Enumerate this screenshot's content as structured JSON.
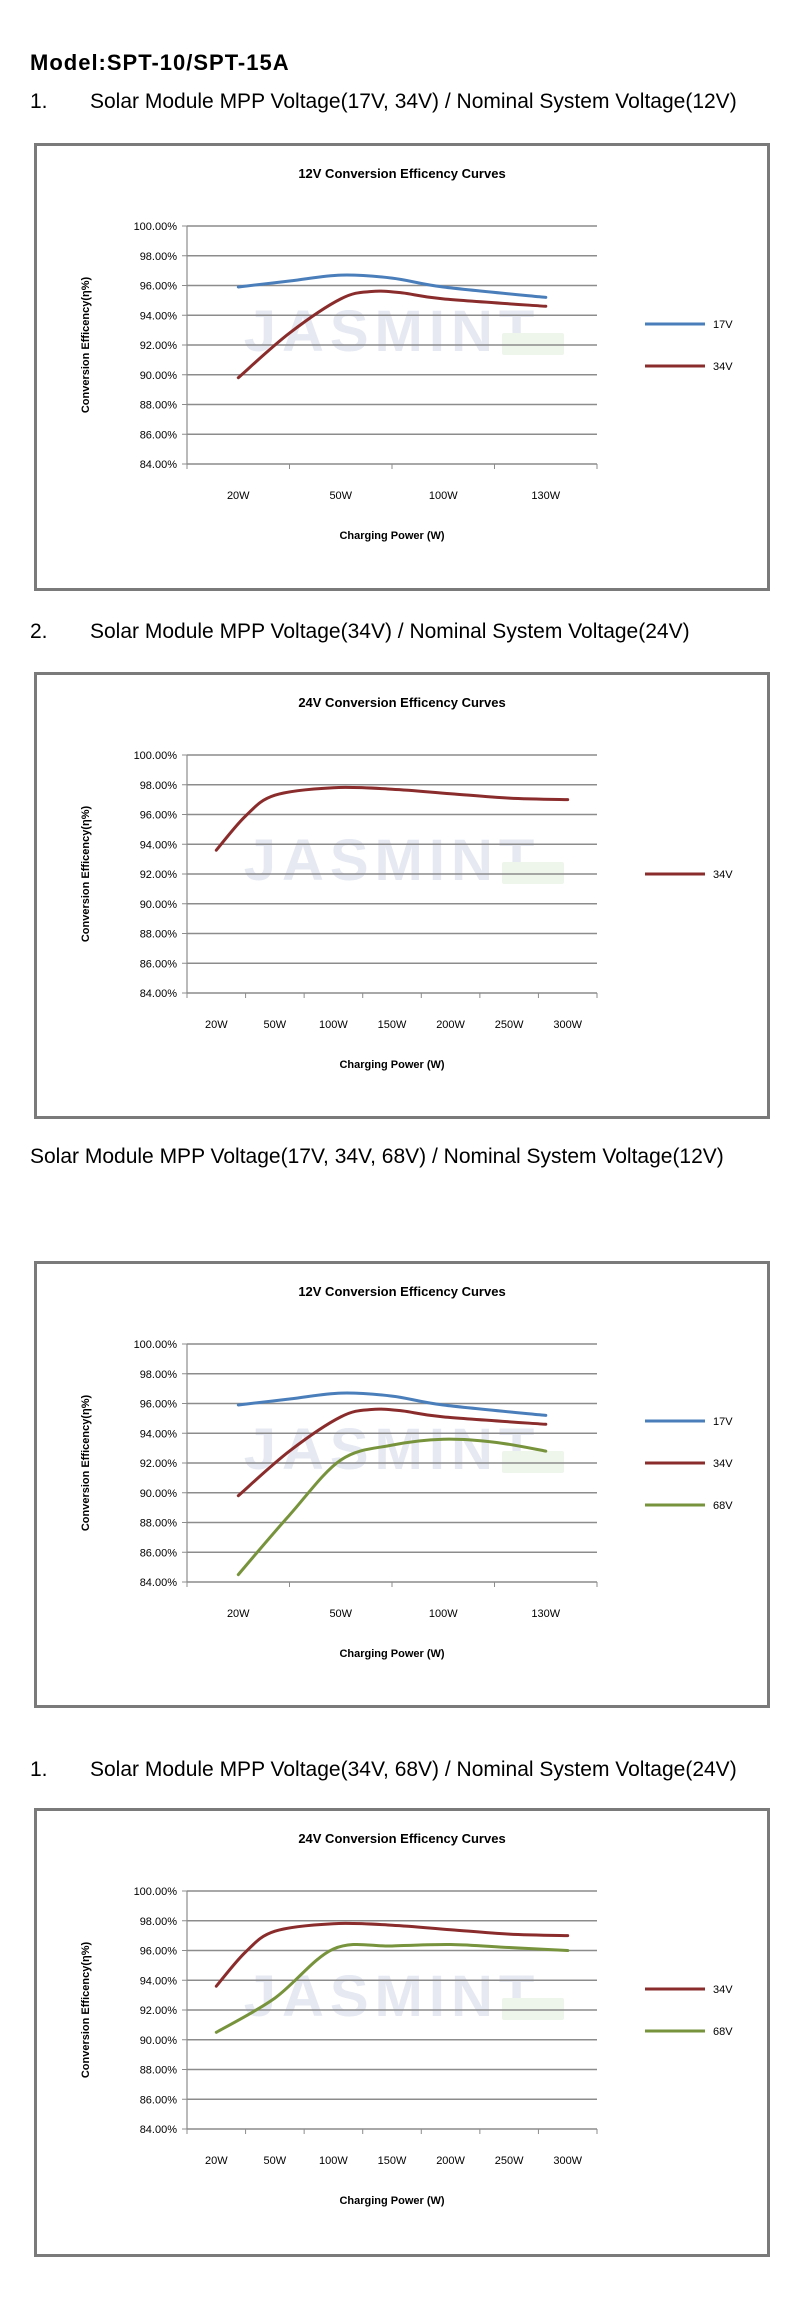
{
  "model": "Model:SPT-10/SPT-15A",
  "sections": [
    {
      "num": "1.",
      "text": "Solar Module MPP Voltage(17V, 34V) / Nominal System Voltage(12V)"
    },
    {
      "num": "2.",
      "text": "Solar Module MPP Voltage(34V) / Nominal System Voltage(24V)"
    },
    {
      "num": "",
      "text": "Solar Module MPP Voltage(17V, 34V, 68V) / Nominal System Voltage(12V)"
    },
    {
      "num": "1.",
      "text": "Solar Module MPP Voltage(34V, 68V) / Nominal System Voltage(24V)"
    }
  ],
  "watermark": "JASMINT",
  "chart_data": [
    {
      "type": "line",
      "title": "12V  Conversion Efficency Curves",
      "xlabel": "Charging  Power  (W)",
      "ylabel": "Conversion Efficency(η%)",
      "categories": [
        "20W",
        "50W",
        "100W",
        "130W"
      ],
      "yticks": [
        "100.00%",
        "98.00%",
        "96.00%",
        "94.00%",
        "92.00%",
        "90.00%",
        "88.00%",
        "86.00%",
        "84.00%"
      ],
      "ylim": [
        84,
        100
      ],
      "legend_position": "right",
      "grid": true,
      "series": [
        {
          "name": "17V",
          "color": "#4a7ebb",
          "points": [
            [
              0,
              95.9
            ],
            [
              0.5,
              96.3
            ],
            [
              1,
              96.7
            ],
            [
              1.5,
              96.5
            ],
            [
              2,
              95.9
            ],
            [
              3,
              95.2
            ]
          ]
        },
        {
          "name": "34V",
          "color": "#8b2c2c",
          "points": [
            [
              0,
              89.8
            ],
            [
              0.5,
              92.8
            ],
            [
              1,
              95.1
            ],
            [
              1.3,
              95.6
            ],
            [
              1.6,
              95.5
            ],
            [
              2,
              95.1
            ],
            [
              3,
              94.6
            ]
          ]
        }
      ]
    },
    {
      "type": "line",
      "title": "24V  Conversion Efficency Curves",
      "xlabel": "Charging  Power  (W)",
      "ylabel": "Conversion Efficency(η%)",
      "categories": [
        "20W",
        "50W",
        "100W",
        "150W",
        "200W",
        "250W",
        "300W"
      ],
      "yticks": [
        "100.00%",
        "98.00%",
        "96.00%",
        "94.00%",
        "92.00%",
        "90.00%",
        "88.00%",
        "86.00%",
        "84.00%"
      ],
      "ylim": [
        84,
        100
      ],
      "legend_position": "right",
      "grid": true,
      "series": [
        {
          "name": "34V",
          "color": "#8b2c2c",
          "points": [
            [
              0,
              93.6
            ],
            [
              0.5,
              95.9
            ],
            [
              1,
              97.3
            ],
            [
              2,
              97.8
            ],
            [
              3,
              97.7
            ],
            [
              4,
              97.4
            ],
            [
              5,
              97.1
            ],
            [
              6,
              97.0
            ]
          ]
        }
      ]
    },
    {
      "type": "line",
      "title": "12V  Conversion Efficency Curves",
      "xlabel": "Charging  Power  (W)",
      "ylabel": "Conversion Efficency(η%)",
      "categories": [
        "20W",
        "50W",
        "100W",
        "130W"
      ],
      "yticks": [
        "100.00%",
        "98.00%",
        "96.00%",
        "94.00%",
        "92.00%",
        "90.00%",
        "88.00%",
        "86.00%",
        "84.00%"
      ],
      "ylim": [
        84,
        100
      ],
      "legend_position": "right",
      "grid": true,
      "series": [
        {
          "name": "17V",
          "color": "#4a7ebb",
          "points": [
            [
              0,
              95.9
            ],
            [
              0.5,
              96.3
            ],
            [
              1,
              96.7
            ],
            [
              1.5,
              96.5
            ],
            [
              2,
              95.9
            ],
            [
              3,
              95.2
            ]
          ]
        },
        {
          "name": "34V",
          "color": "#8b2c2c",
          "points": [
            [
              0,
              89.8
            ],
            [
              0.5,
              92.8
            ],
            [
              1,
              95.1
            ],
            [
              1.3,
              95.6
            ],
            [
              1.6,
              95.5
            ],
            [
              2,
              95.1
            ],
            [
              3,
              94.6
            ]
          ]
        },
        {
          "name": "68V",
          "color": "#77933c",
          "points": [
            [
              0,
              84.5
            ],
            [
              0.5,
              88.5
            ],
            [
              1,
              92.2
            ],
            [
              1.5,
              93.2
            ],
            [
              2,
              93.6
            ],
            [
              2.5,
              93.4
            ],
            [
              3,
              92.8
            ]
          ]
        }
      ]
    },
    {
      "type": "line",
      "title": "24V  Conversion Efficency Curves",
      "xlabel": "Charging  Power  (W)",
      "ylabel": "Conversion Efficency(η%)",
      "categories": [
        "20W",
        "50W",
        "100W",
        "150W",
        "200W",
        "250W",
        "300W"
      ],
      "yticks": [
        "100.00%",
        "98.00%",
        "96.00%",
        "94.00%",
        "92.00%",
        "90.00%",
        "88.00%",
        "86.00%",
        "84.00%"
      ],
      "ylim": [
        84,
        100
      ],
      "legend_position": "right",
      "grid": true,
      "series": [
        {
          "name": "34V",
          "color": "#8b2c2c",
          "points": [
            [
              0,
              93.6
            ],
            [
              0.5,
              95.9
            ],
            [
              1,
              97.3
            ],
            [
              2,
              97.8
            ],
            [
              3,
              97.7
            ],
            [
              4,
              97.4
            ],
            [
              5,
              97.1
            ],
            [
              6,
              97.0
            ]
          ]
        },
        {
          "name": "68V",
          "color": "#77933c",
          "points": [
            [
              0,
              90.5
            ],
            [
              1,
              92.8
            ],
            [
              2,
              96.1
            ],
            [
              3,
              96.3
            ],
            [
              4,
              96.4
            ],
            [
              5,
              96.2
            ],
            [
              6,
              96.0
            ]
          ]
        }
      ]
    }
  ]
}
